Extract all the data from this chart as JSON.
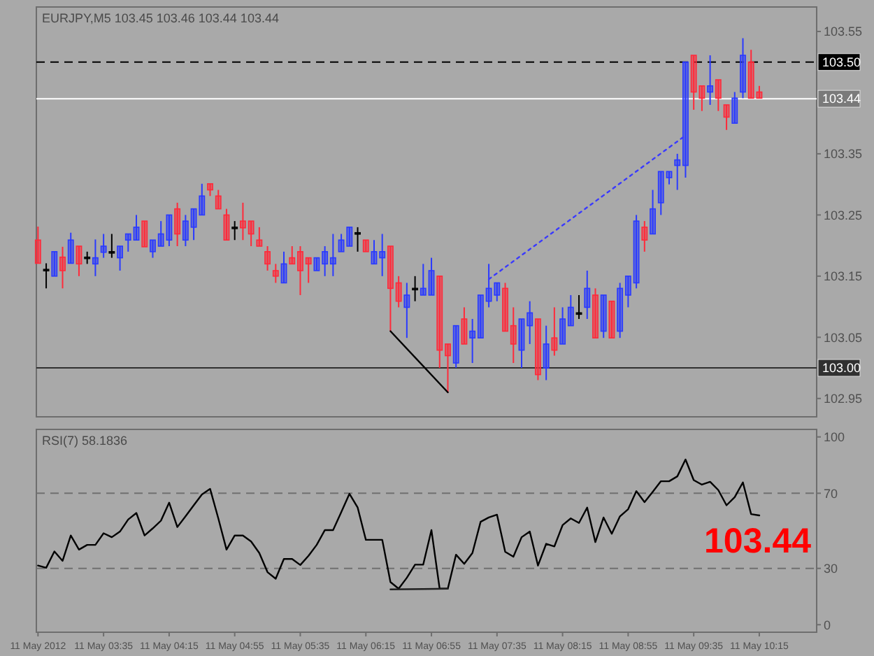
{
  "chart_data": [
    {
      "type": "candlestick",
      "title": "EURJPY,M5  103.45 103.46 103.44 103.44",
      "x": [
        "2012-05-11T02:55",
        "2012-05-11T03:00",
        "2012-05-11T03:05",
        "2012-05-11T03:10",
        "2012-05-11T03:15",
        "2012-05-11T03:20",
        "2012-05-11T03:25",
        "2012-05-11T03:30",
        "2012-05-11T03:35",
        "2012-05-11T03:40",
        "2012-05-11T03:45",
        "2012-05-11T03:50",
        "2012-05-11T03:55",
        "2012-05-11T04:00",
        "2012-05-11T04:05",
        "2012-05-11T04:10",
        "2012-05-11T04:15",
        "2012-05-11T04:20",
        "2012-05-11T04:25",
        "2012-05-11T04:30",
        "2012-05-11T04:35",
        "2012-05-11T04:40",
        "2012-05-11T04:45",
        "2012-05-11T04:50",
        "2012-05-11T04:55",
        "2012-05-11T05:00",
        "2012-05-11T05:05",
        "2012-05-11T05:10",
        "2012-05-11T05:15",
        "2012-05-11T05:20",
        "2012-05-11T05:25",
        "2012-05-11T05:30",
        "2012-05-11T05:35",
        "2012-05-11T05:40",
        "2012-05-11T05:45",
        "2012-05-11T05:50",
        "2012-05-11T05:55",
        "2012-05-11T06:00",
        "2012-05-11T06:05",
        "2012-05-11T06:10",
        "2012-05-11T06:15",
        "2012-05-11T06:20",
        "2012-05-11T06:25",
        "2012-05-11T06:30",
        "2012-05-11T06:35",
        "2012-05-11T06:40",
        "2012-05-11T06:45",
        "2012-05-11T06:50",
        "2012-05-11T06:55",
        "2012-05-11T07:00",
        "2012-05-11T07:05",
        "2012-05-11T07:10",
        "2012-05-11T07:15",
        "2012-05-11T07:20",
        "2012-05-11T07:25",
        "2012-05-11T07:30",
        "2012-05-11T07:35",
        "2012-05-11T07:40",
        "2012-05-11T07:45",
        "2012-05-11T07:50",
        "2012-05-11T07:55",
        "2012-05-11T08:00",
        "2012-05-11T08:05",
        "2012-05-11T08:10",
        "2012-05-11T08:15",
        "2012-05-11T08:20",
        "2012-05-11T08:25",
        "2012-05-11T08:30",
        "2012-05-11T08:35",
        "2012-05-11T08:40",
        "2012-05-11T08:45",
        "2012-05-11T08:50",
        "2012-05-11T08:55",
        "2012-05-11T09:00",
        "2012-05-11T09:05",
        "2012-05-11T09:10",
        "2012-05-11T09:15",
        "2012-05-11T09:20",
        "2012-05-11T09:25",
        "2012-05-11T09:30",
        "2012-05-11T09:35",
        "2012-05-11T09:40",
        "2012-05-11T09:45",
        "2012-05-11T09:50",
        "2012-05-11T09:55",
        "2012-05-11T10:00",
        "2012-05-11T10:05",
        "2012-05-11T10:10",
        "2012-05-11T10:15"
      ],
      "ohlc": [
        [
          103.209,
          103.231,
          103.171,
          103.171
        ],
        [
          103.161,
          103.171,
          103.13,
          103.161
        ],
        [
          103.15,
          103.19,
          103.15,
          103.19
        ],
        [
          103.181,
          103.198,
          103.13,
          103.159
        ],
        [
          103.171,
          103.221,
          103.171,
          103.209
        ],
        [
          103.199,
          103.199,
          103.15,
          103.17
        ],
        [
          103.181,
          103.19,
          103.17,
          103.181
        ],
        [
          103.17,
          103.21,
          103.15,
          103.18
        ],
        [
          103.189,
          103.219,
          103.18,
          103.199
        ],
        [
          103.19,
          103.219,
          103.18,
          103.19
        ],
        [
          103.18,
          103.199,
          103.159,
          103.199
        ],
        [
          103.209,
          103.219,
          103.19,
          103.219
        ],
        [
          103.209,
          103.25,
          103.209,
          103.23
        ],
        [
          103.24,
          103.24,
          103.198,
          103.198
        ],
        [
          103.19,
          103.209,
          103.18,
          103.209
        ],
        [
          103.199,
          103.24,
          103.199,
          103.219
        ],
        [
          103.209,
          103.25,
          103.199,
          103.25
        ],
        [
          103.26,
          103.27,
          103.199,
          103.219
        ],
        [
          103.209,
          103.25,
          103.199,
          103.24
        ],
        [
          103.23,
          103.26,
          103.209,
          103.26
        ],
        [
          103.25,
          103.301,
          103.25,
          103.281
        ],
        [
          103.301,
          103.301,
          103.281,
          103.291
        ],
        [
          103.281,
          103.291,
          103.26,
          103.26
        ],
        [
          103.25,
          103.26,
          103.209,
          103.209
        ],
        [
          103.23,
          103.24,
          103.209,
          103.23
        ],
        [
          103.24,
          103.27,
          103.209,
          103.229
        ],
        [
          103.24,
          103.24,
          103.199,
          103.219
        ],
        [
          103.209,
          103.23,
          103.199,
          103.199
        ],
        [
          103.19,
          103.199,
          103.159,
          103.17
        ],
        [
          103.159,
          103.17,
          103.139,
          103.15
        ],
        [
          103.139,
          103.19,
          103.139,
          103.17
        ],
        [
          103.18,
          103.199,
          103.17,
          103.17
        ],
        [
          103.19,
          103.199,
          103.119,
          103.159
        ],
        [
          103.18,
          103.18,
          103.139,
          103.17
        ],
        [
          103.159,
          103.18,
          103.159,
          103.18
        ],
        [
          103.17,
          103.199,
          103.15,
          103.19
        ],
        [
          103.17,
          103.219,
          103.15,
          103.18
        ],
        [
          103.19,
          103.219,
          103.19,
          103.209
        ],
        [
          103.199,
          103.23,
          103.199,
          103.23
        ],
        [
          103.221,
          103.23,
          103.19,
          103.221
        ],
        [
          103.209,
          103.209,
          103.19,
          103.19
        ],
        [
          103.17,
          103.209,
          103.17,
          103.19
        ],
        [
          103.18,
          103.219,
          103.15,
          103.19
        ],
        [
          103.199,
          103.199,
          103.06,
          103.13
        ],
        [
          103.139,
          103.15,
          103.099,
          103.109
        ],
        [
          103.099,
          103.139,
          103.049,
          103.119
        ],
        [
          103.13,
          103.15,
          103.109,
          103.13
        ],
        [
          103.119,
          103.17,
          103.119,
          103.13
        ],
        [
          103.119,
          103.18,
          103.119,
          103.159
        ],
        [
          103.15,
          103.15,
          103.0,
          103.029
        ],
        [
          103.039,
          103.039,
          102.96,
          103.02
        ],
        [
          103.008,
          103.069,
          103.0,
          103.069
        ],
        [
          103.08,
          103.099,
          103.039,
          103.039
        ],
        [
          103.049,
          103.08,
          103.008,
          103.06
        ],
        [
          103.049,
          103.119,
          103.049,
          103.119
        ],
        [
          103.109,
          103.17,
          103.099,
          103.13
        ],
        [
          103.119,
          103.139,
          103.109,
          103.139
        ],
        [
          103.13,
          103.139,
          103.06,
          103.06
        ],
        [
          103.069,
          103.099,
          103.008,
          103.039
        ],
        [
          103.029,
          103.08,
          103.0,
          103.08
        ],
        [
          103.069,
          103.109,
          103.039,
          103.09
        ],
        [
          103.08,
          103.08,
          102.98,
          102.989
        ],
        [
          103.0,
          103.069,
          102.98,
          103.039
        ],
        [
          103.049,
          103.099,
          103.02,
          103.029
        ],
        [
          103.039,
          103.099,
          103.039,
          103.08
        ],
        [
          103.069,
          103.119,
          103.069,
          103.099
        ],
        [
          103.09,
          103.119,
          103.08,
          103.09
        ],
        [
          103.099,
          103.159,
          103.08,
          103.13
        ],
        [
          103.119,
          103.13,
          103.049,
          103.049
        ],
        [
          103.06,
          103.119,
          103.049,
          103.119
        ],
        [
          103.109,
          103.109,
          103.049,
          103.049
        ],
        [
          103.06,
          103.139,
          103.049,
          103.13
        ],
        [
          103.119,
          103.15,
          103.099,
          103.15
        ],
        [
          103.139,
          103.25,
          103.13,
          103.24
        ],
        [
          103.23,
          103.24,
          103.19,
          103.209
        ],
        [
          103.219,
          103.291,
          103.219,
          103.26
        ],
        [
          103.27,
          103.321,
          103.25,
          103.321
        ],
        [
          103.311,
          103.321,
          103.3,
          103.321
        ],
        [
          103.331,
          103.35,
          103.291,
          103.34
        ],
        [
          103.331,
          103.5,
          103.311,
          103.5
        ],
        [
          103.511,
          103.511,
          103.422,
          103.451
        ],
        [
          103.461,
          103.461,
          103.42,
          103.441
        ],
        [
          103.451,
          103.511,
          103.43,
          103.461
        ],
        [
          103.471,
          103.471,
          103.42,
          103.441
        ],
        [
          103.43,
          103.43,
          103.389,
          103.41
        ],
        [
          103.4,
          103.451,
          103.4,
          103.441
        ],
        [
          103.451,
          103.539,
          103.441,
          103.511
        ],
        [
          103.5,
          103.52,
          103.441,
          103.441
        ],
        [
          103.451,
          103.461,
          103.441,
          103.441
        ]
      ],
      "colors": [
        "#ff2a3a",
        "#000000",
        "#2a3aff",
        "#ff2a3a",
        "#2a3aff",
        "#ff2a3a",
        "#000000",
        "#2a3aff",
        "#2a3aff",
        "#000000",
        "#2a3aff",
        "#2a3aff",
        "#2a3aff",
        "#ff2a3a",
        "#2a3aff",
        "#2a3aff",
        "#2a3aff",
        "#ff2a3a",
        "#2a3aff",
        "#2a3aff",
        "#2a3aff",
        "#ff2a3a",
        "#ff2a3a",
        "#ff2a3a",
        "#000000",
        "#ff2a3a",
        "#ff2a3a",
        "#ff2a3a",
        "#ff2a3a",
        "#ff2a3a",
        "#2a3aff",
        "#ff2a3a",
        "#ff2a3a",
        "#ff2a3a",
        "#2a3aff",
        "#2a3aff",
        "#2a3aff",
        "#2a3aff",
        "#2a3aff",
        "#000000",
        "#ff2a3a",
        "#2a3aff",
        "#2a3aff",
        "#ff2a3a",
        "#ff2a3a",
        "#2a3aff",
        "#000000",
        "#2a3aff",
        "#2a3aff",
        "#ff2a3a",
        "#ff2a3a",
        "#2a3aff",
        "#ff2a3a",
        "#2a3aff",
        "#2a3aff",
        "#2a3aff",
        "#2a3aff",
        "#ff2a3a",
        "#ff2a3a",
        "#2a3aff",
        "#2a3aff",
        "#ff2a3a",
        "#2a3aff",
        "#ff2a3a",
        "#2a3aff",
        "#2a3aff",
        "#000000",
        "#2a3aff",
        "#ff2a3a",
        "#2a3aff",
        "#ff2a3a",
        "#2a3aff",
        "#2a3aff",
        "#2a3aff",
        "#ff2a3a",
        "#2a3aff",
        "#2a3aff",
        "#2a3aff",
        "#2a3aff",
        "#2a3aff",
        "#ff2a3a",
        "#ff2a3a",
        "#2a3aff",
        "#ff2a3a",
        "#ff2a3a",
        "#2a3aff",
        "#2a3aff",
        "#ff2a3a",
        "#ff2a3a"
      ],
      "series": [
        {
          "type": "line",
          "x": [
            "2012-05-11T06:30",
            "2012-05-11T07:05"
          ],
          "values": [
            103.06,
            102.96
          ],
          "color": "#000000",
          "line_style": "solid"
        },
        {
          "type": "line",
          "x": [
            "2012-05-11T07:30",
            "2012-05-11T09:30"
          ],
          "values": [
            103.145,
            103.38
          ],
          "color": "#3a3aff",
          "line_style": "dotted"
        }
      ],
      "xlim": [
        "2012-05-11T02:54",
        "2012-05-11T10:50"
      ],
      "ylim": [
        102.92,
        103.59
      ],
      "yticks": [
        102.95,
        103.05,
        103.15,
        103.25,
        103.35,
        103.55
      ],
      "tick_labels": "y",
      "ref_lines": [
        {
          "axis": "y",
          "value": 103.5,
          "label": "103.50",
          "color": "#000000",
          "line_style": "dashed"
        },
        {
          "axis": "y",
          "value": 103.44,
          "label": "103.44",
          "color": "#ffffff",
          "line_style": "solid"
        },
        {
          "axis": "y",
          "value": 103.0,
          "label": "103.00",
          "color": "#303030",
          "line_style": "solid"
        }
      ]
    },
    {
      "type": "line",
      "title": "RSI(7) 58.1836",
      "x": [
        "2012-05-11T02:55",
        "2012-05-11T03:00",
        "2012-05-11T03:05",
        "2012-05-11T03:10",
        "2012-05-11T03:15",
        "2012-05-11T03:20",
        "2012-05-11T03:25",
        "2012-05-11T03:30",
        "2012-05-11T03:35",
        "2012-05-11T03:40",
        "2012-05-11T03:45",
        "2012-05-11T03:50",
        "2012-05-11T03:55",
        "2012-05-11T04:00",
        "2012-05-11T04:05",
        "2012-05-11T04:10",
        "2012-05-11T04:15",
        "2012-05-11T04:20",
        "2012-05-11T04:25",
        "2012-05-11T04:30",
        "2012-05-11T04:35",
        "2012-05-11T04:40",
        "2012-05-11T04:45",
        "2012-05-11T04:50",
        "2012-05-11T04:55",
        "2012-05-11T05:00",
        "2012-05-11T05:05",
        "2012-05-11T05:10",
        "2012-05-11T05:15",
        "2012-05-11T05:20",
        "2012-05-11T05:25",
        "2012-05-11T05:30",
        "2012-05-11T05:35",
        "2012-05-11T05:40",
        "2012-05-11T05:45",
        "2012-05-11T05:50",
        "2012-05-11T05:55",
        "2012-05-11T06:00",
        "2012-05-11T06:05",
        "2012-05-11T06:10",
        "2012-05-11T06:15",
        "2012-05-11T06:20",
        "2012-05-11T06:25",
        "2012-05-11T06:30",
        "2012-05-11T06:35",
        "2012-05-11T06:40",
        "2012-05-11T06:45",
        "2012-05-11T06:50",
        "2012-05-11T06:55",
        "2012-05-11T07:00",
        "2012-05-11T07:05",
        "2012-05-11T07:10",
        "2012-05-11T07:15",
        "2012-05-11T07:20",
        "2012-05-11T07:25",
        "2012-05-11T07:30",
        "2012-05-11T07:35",
        "2012-05-11T07:40",
        "2012-05-11T07:45",
        "2012-05-11T07:50",
        "2012-05-11T07:55",
        "2012-05-11T08:00",
        "2012-05-11T08:05",
        "2012-05-11T08:10",
        "2012-05-11T08:15",
        "2012-05-11T08:20",
        "2012-05-11T08:25",
        "2012-05-11T08:30",
        "2012-05-11T08:35",
        "2012-05-11T08:40",
        "2012-05-11T08:45",
        "2012-05-11T08:50",
        "2012-05-11T08:55",
        "2012-05-11T09:00",
        "2012-05-11T09:05",
        "2012-05-11T09:10",
        "2012-05-11T09:15",
        "2012-05-11T09:20",
        "2012-05-11T09:25",
        "2012-05-11T09:30",
        "2012-05-11T09:35",
        "2012-05-11T09:40",
        "2012-05-11T09:45",
        "2012-05-11T09:50",
        "2012-05-11T09:55",
        "2012-05-11T10:00",
        "2012-05-11T10:05",
        "2012-05-11T10:10",
        "2012-05-11T10:15"
      ],
      "series": [
        {
          "color": "#000000",
          "values": [
            31.5,
            30.3,
            39,
            34,
            47.5,
            40,
            42.5,
            42.5,
            48.7,
            46.6,
            49.6,
            56,
            59.5,
            47.5,
            51.3,
            55.4,
            65,
            52,
            57.7,
            63.6,
            69.4,
            72.3,
            56.6,
            40,
            47.5,
            47.5,
            44.3,
            38.2,
            28,
            24.5,
            35,
            35,
            31.8,
            36.7,
            42.5,
            50.4,
            50.4,
            60,
            69.7,
            62.4,
            45.2,
            45.2,
            45.2,
            22.7,
            19.2,
            25,
            32,
            32,
            50.4,
            19.2,
            19.2,
            37.3,
            32.4,
            38.2,
            54.8,
            57.1,
            58.6,
            38.8,
            36.2,
            46.6,
            49.6,
            31.5,
            43.1,
            41.7,
            53,
            56.6,
            54.2,
            62.4,
            44,
            57.1,
            48.4,
            57.7,
            61.5,
            71.1,
            65.3,
            70.8,
            76.4,
            76.4,
            79,
            88,
            77,
            74.6,
            76.1,
            71.7,
            63.6,
            67.9,
            75.8,
            58.9,
            58.2
          ]
        },
        {
          "color": "#202020",
          "x": [
            "2012-05-11T06:30",
            "2012-05-11T06:50",
            "2012-05-11T07:05"
          ],
          "values": [
            18.8,
            19.0,
            19.2
          ]
        }
      ],
      "xlim": [
        "2012-05-11T02:54",
        "2012-05-11T10:50"
      ],
      "ylim": [
        -4,
        104
      ],
      "yticks": [
        0,
        30,
        70,
        100
      ],
      "xticks": [
        {
          "value": "2012-05-11T02:55",
          "label": "11 May 2012"
        },
        {
          "value": "2012-05-11T03:35",
          "label": "11 May 03:35"
        },
        {
          "value": "2012-05-11T04:15",
          "label": "11 May 04:15"
        },
        {
          "value": "2012-05-11T04:55",
          "label": "11 May 04:55"
        },
        {
          "value": "2012-05-11T05:35",
          "label": "11 May 05:35"
        },
        {
          "value": "2012-05-11T06:15",
          "label": "11 May 06:15"
        },
        {
          "value": "2012-05-11T06:55",
          "label": "11 May 06:55"
        },
        {
          "value": "2012-05-11T07:35",
          "label": "11 May 07:35"
        },
        {
          "value": "2012-05-11T08:15",
          "label": "11 May 08:15"
        },
        {
          "value": "2012-05-11T08:55",
          "label": "11 May 08:55"
        },
        {
          "value": "2012-05-11T09:35",
          "label": "11 May 09:35"
        },
        {
          "value": "2012-05-11T10:15",
          "label": "11 May 10:15"
        }
      ],
      "ref_lines": [
        {
          "axis": "y",
          "value": 70,
          "color": "#707070",
          "line_style": "dashed"
        },
        {
          "axis": "y",
          "value": 30,
          "color": "#707070",
          "line_style": "dashed"
        }
      ],
      "annotations": [
        "103.44"
      ]
    }
  ]
}
